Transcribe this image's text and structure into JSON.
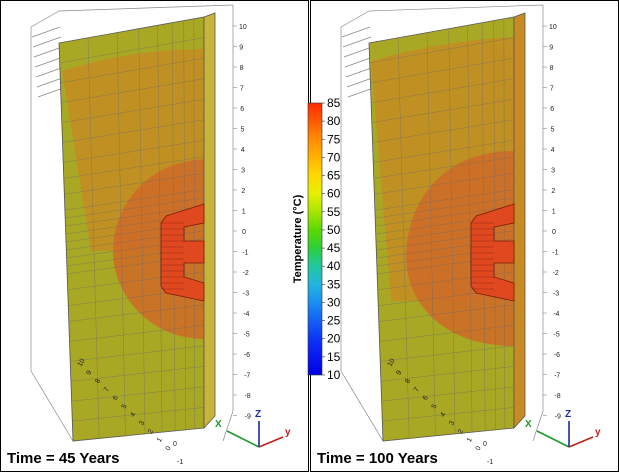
{
  "panels": [
    {
      "time_label": "Time = 45 Years"
    },
    {
      "time_label": "Time = 100 Years"
    }
  ],
  "colorbar": {
    "title": "Temperature  (°C)",
    "ticks": [
      "85",
      "80",
      "75",
      "70",
      "65",
      "60",
      "55",
      "50",
      "45",
      "40",
      "35",
      "30",
      "25",
      "20",
      "15",
      "10"
    ],
    "colors": [
      "#ff2a00",
      "#ff5a00",
      "#ff8c00",
      "#ffb300",
      "#ffd800",
      "#e6f000",
      "#a8e600",
      "#5ad800",
      "#2ccf3a",
      "#22c8a0",
      "#22b5dd",
      "#1a8ff0",
      "#1460f5",
      "#0d35f7",
      "#0818f0",
      "#0000e0"
    ]
  },
  "axes": {
    "vertical_ticks": [
      "10",
      "9",
      "8",
      "7",
      "6",
      "5",
      "4",
      "3",
      "2",
      "1",
      "0",
      "-1",
      "-2",
      "-3",
      "-4",
      "-5",
      "-6",
      "-7",
      "-8",
      "-9"
    ],
    "depth_ticks": [
      "10",
      "9",
      "8",
      "7",
      "6",
      "5",
      "4",
      "3",
      "2",
      "1",
      "0"
    ],
    "bottom_ticks": [
      "0",
      "-1"
    ],
    "triad_labels": [
      "X",
      "Z",
      "y"
    ]
  },
  "palette": {
    "mesh_line": "#6a6a6a",
    "cool_field": "#a8a825",
    "mid_field": "#c88a22",
    "warm_field": "#cf6a28",
    "hot_core": "#e04820"
  }
}
